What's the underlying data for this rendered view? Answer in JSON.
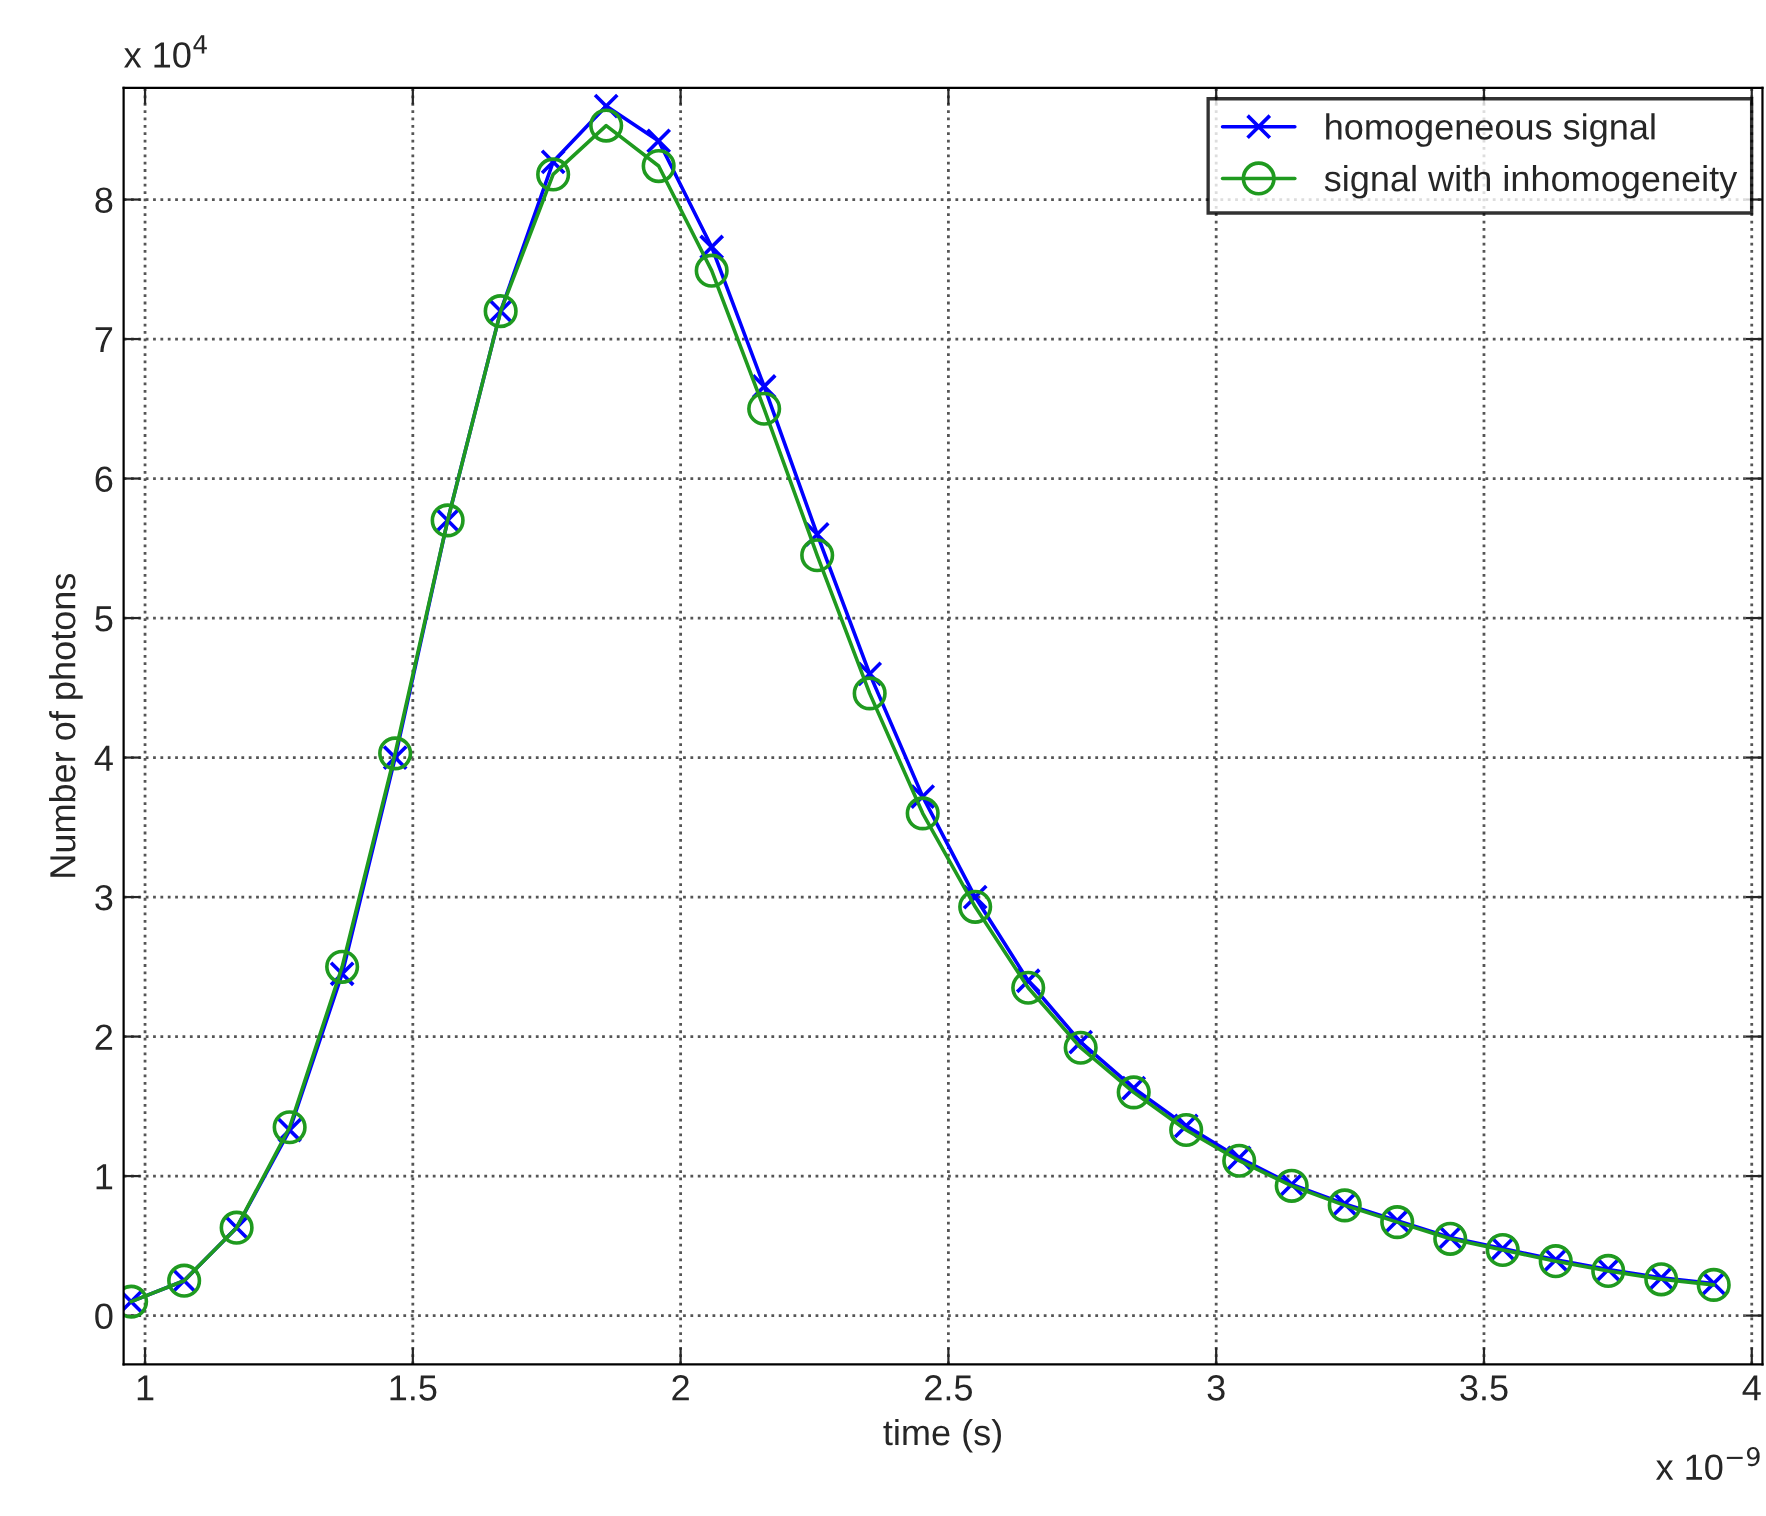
{
  "chart_data": {
    "type": "line",
    "xlabel": "time (s)",
    "ylabel": "Number of photons",
    "annotations": [
      "x 10$^{4}$",
      "x 10$^{−9}$"
    ],
    "x": [
      0.974,
      1.073,
      1.171,
      1.27,
      1.368,
      1.467,
      1.565,
      1.664,
      1.762,
      1.861,
      1.959,
      2.058,
      2.156,
      2.255,
      2.353,
      2.452,
      2.55,
      2.649,
      2.747,
      2.846,
      2.944,
      3.043,
      3.141,
      3.24,
      3.338,
      3.437,
      3.535,
      3.634,
      3.732,
      3.831,
      3.929
    ],
    "series": [
      {
        "name": "homogeneous signal",
        "color": "#0000ff",
        "marker": "cross",
        "values": [
          0.1,
          0.25,
          0.63,
          1.33,
          2.45,
          4.0,
          5.7,
          7.2,
          8.27,
          8.67,
          8.42,
          7.66,
          6.66,
          5.6,
          4.6,
          3.72,
          3.0,
          2.4,
          1.96,
          1.63,
          1.36,
          1.13,
          0.94,
          0.8,
          0.68,
          0.56,
          0.48,
          0.4,
          0.33,
          0.27,
          0.23
        ]
      },
      {
        "name": "signal with inhomogeneity",
        "color": "#1f9a1f",
        "marker": "circle",
        "values": [
          0.1,
          0.25,
          0.63,
          1.35,
          2.5,
          4.03,
          5.7,
          7.2,
          8.18,
          8.53,
          8.24,
          7.49,
          6.5,
          5.45,
          4.46,
          3.6,
          2.93,
          2.35,
          1.92,
          1.6,
          1.33,
          1.11,
          0.93,
          0.79,
          0.67,
          0.55,
          0.47,
          0.39,
          0.32,
          0.26,
          0.22
        ]
      }
    ],
    "xlim": [
      0.96,
      4.02
    ],
    "xticks": [
      1,
      1.5,
      2,
      2.5,
      3,
      3.5,
      4
    ],
    "ylim": [
      -0.35,
      8.8
    ],
    "yticks": [
      0,
      1,
      2,
      3,
      4,
      5,
      6,
      7,
      8
    ],
    "grid": true,
    "legend": "top right",
    "line_style": "solid"
  }
}
